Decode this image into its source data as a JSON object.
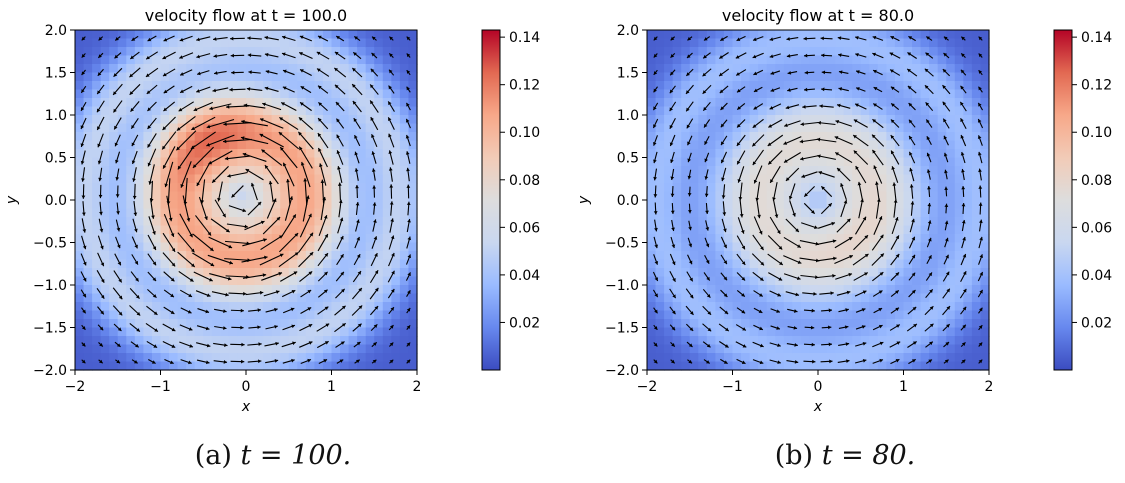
{
  "figure": {
    "captions": [
      {
        "label": "(a)",
        "math": "t = 100."
      },
      {
        "label": "(b)",
        "math": "t = 80."
      }
    ]
  },
  "colormap": {
    "name": "coolwarm",
    "stops": [
      "#3b4cc0",
      "#6788ee",
      "#9abbff",
      "#c9d7f0",
      "#dddddd",
      "#f2cbb7",
      "#f7a889",
      "#e26952",
      "#b40426"
    ]
  },
  "chart_data": [
    {
      "type": "heatmap",
      "subtype": "velocity magnitude with quiver (vector field)",
      "title": "velocity flow at t = 100.0",
      "xlabel": "x",
      "ylabel": "y",
      "xlim": [
        -2,
        2
      ],
      "ylim": [
        -2,
        2
      ],
      "xticks": [
        "−2",
        "−1",
        "0",
        "1",
        "2"
      ],
      "yticks": [
        "2.0",
        "1.5",
        "1.0",
        "0.5",
        "0.0",
        "−0.5",
        "−1.0",
        "−1.5",
        "−2.0"
      ],
      "colorbar": {
        "min": 0.0,
        "max": 0.143,
        "ticks": [
          "0.02",
          "0.04",
          "0.06",
          "0.08",
          "0.10",
          "0.12",
          "0.14"
        ]
      },
      "vortex": {
        "center": [
          -0.05,
          0.05
        ],
        "core_speed_at_center": 0.028,
        "peak_speed": 0.125,
        "peak_radius": 0.75,
        "ring_width": 0.55,
        "hotspot": {
          "x": -0.45,
          "y": 0.75,
          "speed": 0.143
        },
        "outer_ring": {
          "radius": 1.85,
          "speed": 0.042
        },
        "rotation": "counterclockwise"
      }
    },
    {
      "type": "heatmap",
      "subtype": "velocity magnitude with quiver (vector field)",
      "title": "velocity flow at t = 80.0",
      "xlabel": "x",
      "ylabel": "y",
      "xlim": [
        -2,
        2
      ],
      "ylim": [
        -2,
        2
      ],
      "xticks": [
        "−2",
        "−1",
        "0",
        "1",
        "2"
      ],
      "yticks": [
        "2.0",
        "1.5",
        "1.0",
        "0.5",
        "0.0",
        "−0.5",
        "−1.0",
        "−1.5",
        "−2.0"
      ],
      "colorbar": {
        "min": 0.0,
        "max": 0.143,
        "ticks": [
          "0.02",
          "0.04",
          "0.06",
          "0.08",
          "0.10",
          "0.12",
          "0.14"
        ]
      },
      "vortex": {
        "center": [
          0.0,
          0.0
        ],
        "core_speed_at_center": 0.012,
        "peak_speed": 0.076,
        "peak_radius": 0.7,
        "ring_width": 0.6,
        "hotspot": {
          "x": 0.3,
          "y": -0.25,
          "speed": 0.082
        },
        "outer_ring": {
          "radius": 1.9,
          "speed": 0.03
        },
        "rotation": "counterclockwise"
      }
    }
  ]
}
